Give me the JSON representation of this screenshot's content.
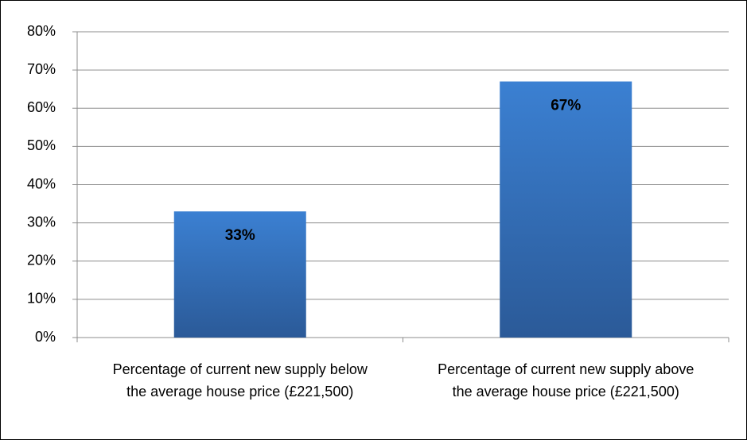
{
  "chart_data": {
    "type": "bar",
    "categories": [
      "Percentage of current new supply below the average house price (£221,500)",
      "Percentage of current new supply above the average house price (£221,500)"
    ],
    "values": [
      33,
      67
    ],
    "value_labels": [
      "33%",
      "67%"
    ],
    "color": "#3b80d2",
    "ylim": [
      0,
      80
    ],
    "yticks": [
      {
        "value": 0,
        "label": "0%"
      },
      {
        "value": 10,
        "label": "10%"
      },
      {
        "value": 20,
        "label": "20%"
      },
      {
        "value": 30,
        "label": "30%"
      },
      {
        "value": 40,
        "label": "40%"
      },
      {
        "value": 50,
        "label": "50%"
      },
      {
        "value": 60,
        "label": "60%"
      },
      {
        "value": 70,
        "label": "70%"
      },
      {
        "value": 80,
        "label": "80%"
      }
    ],
    "grid": true
  }
}
